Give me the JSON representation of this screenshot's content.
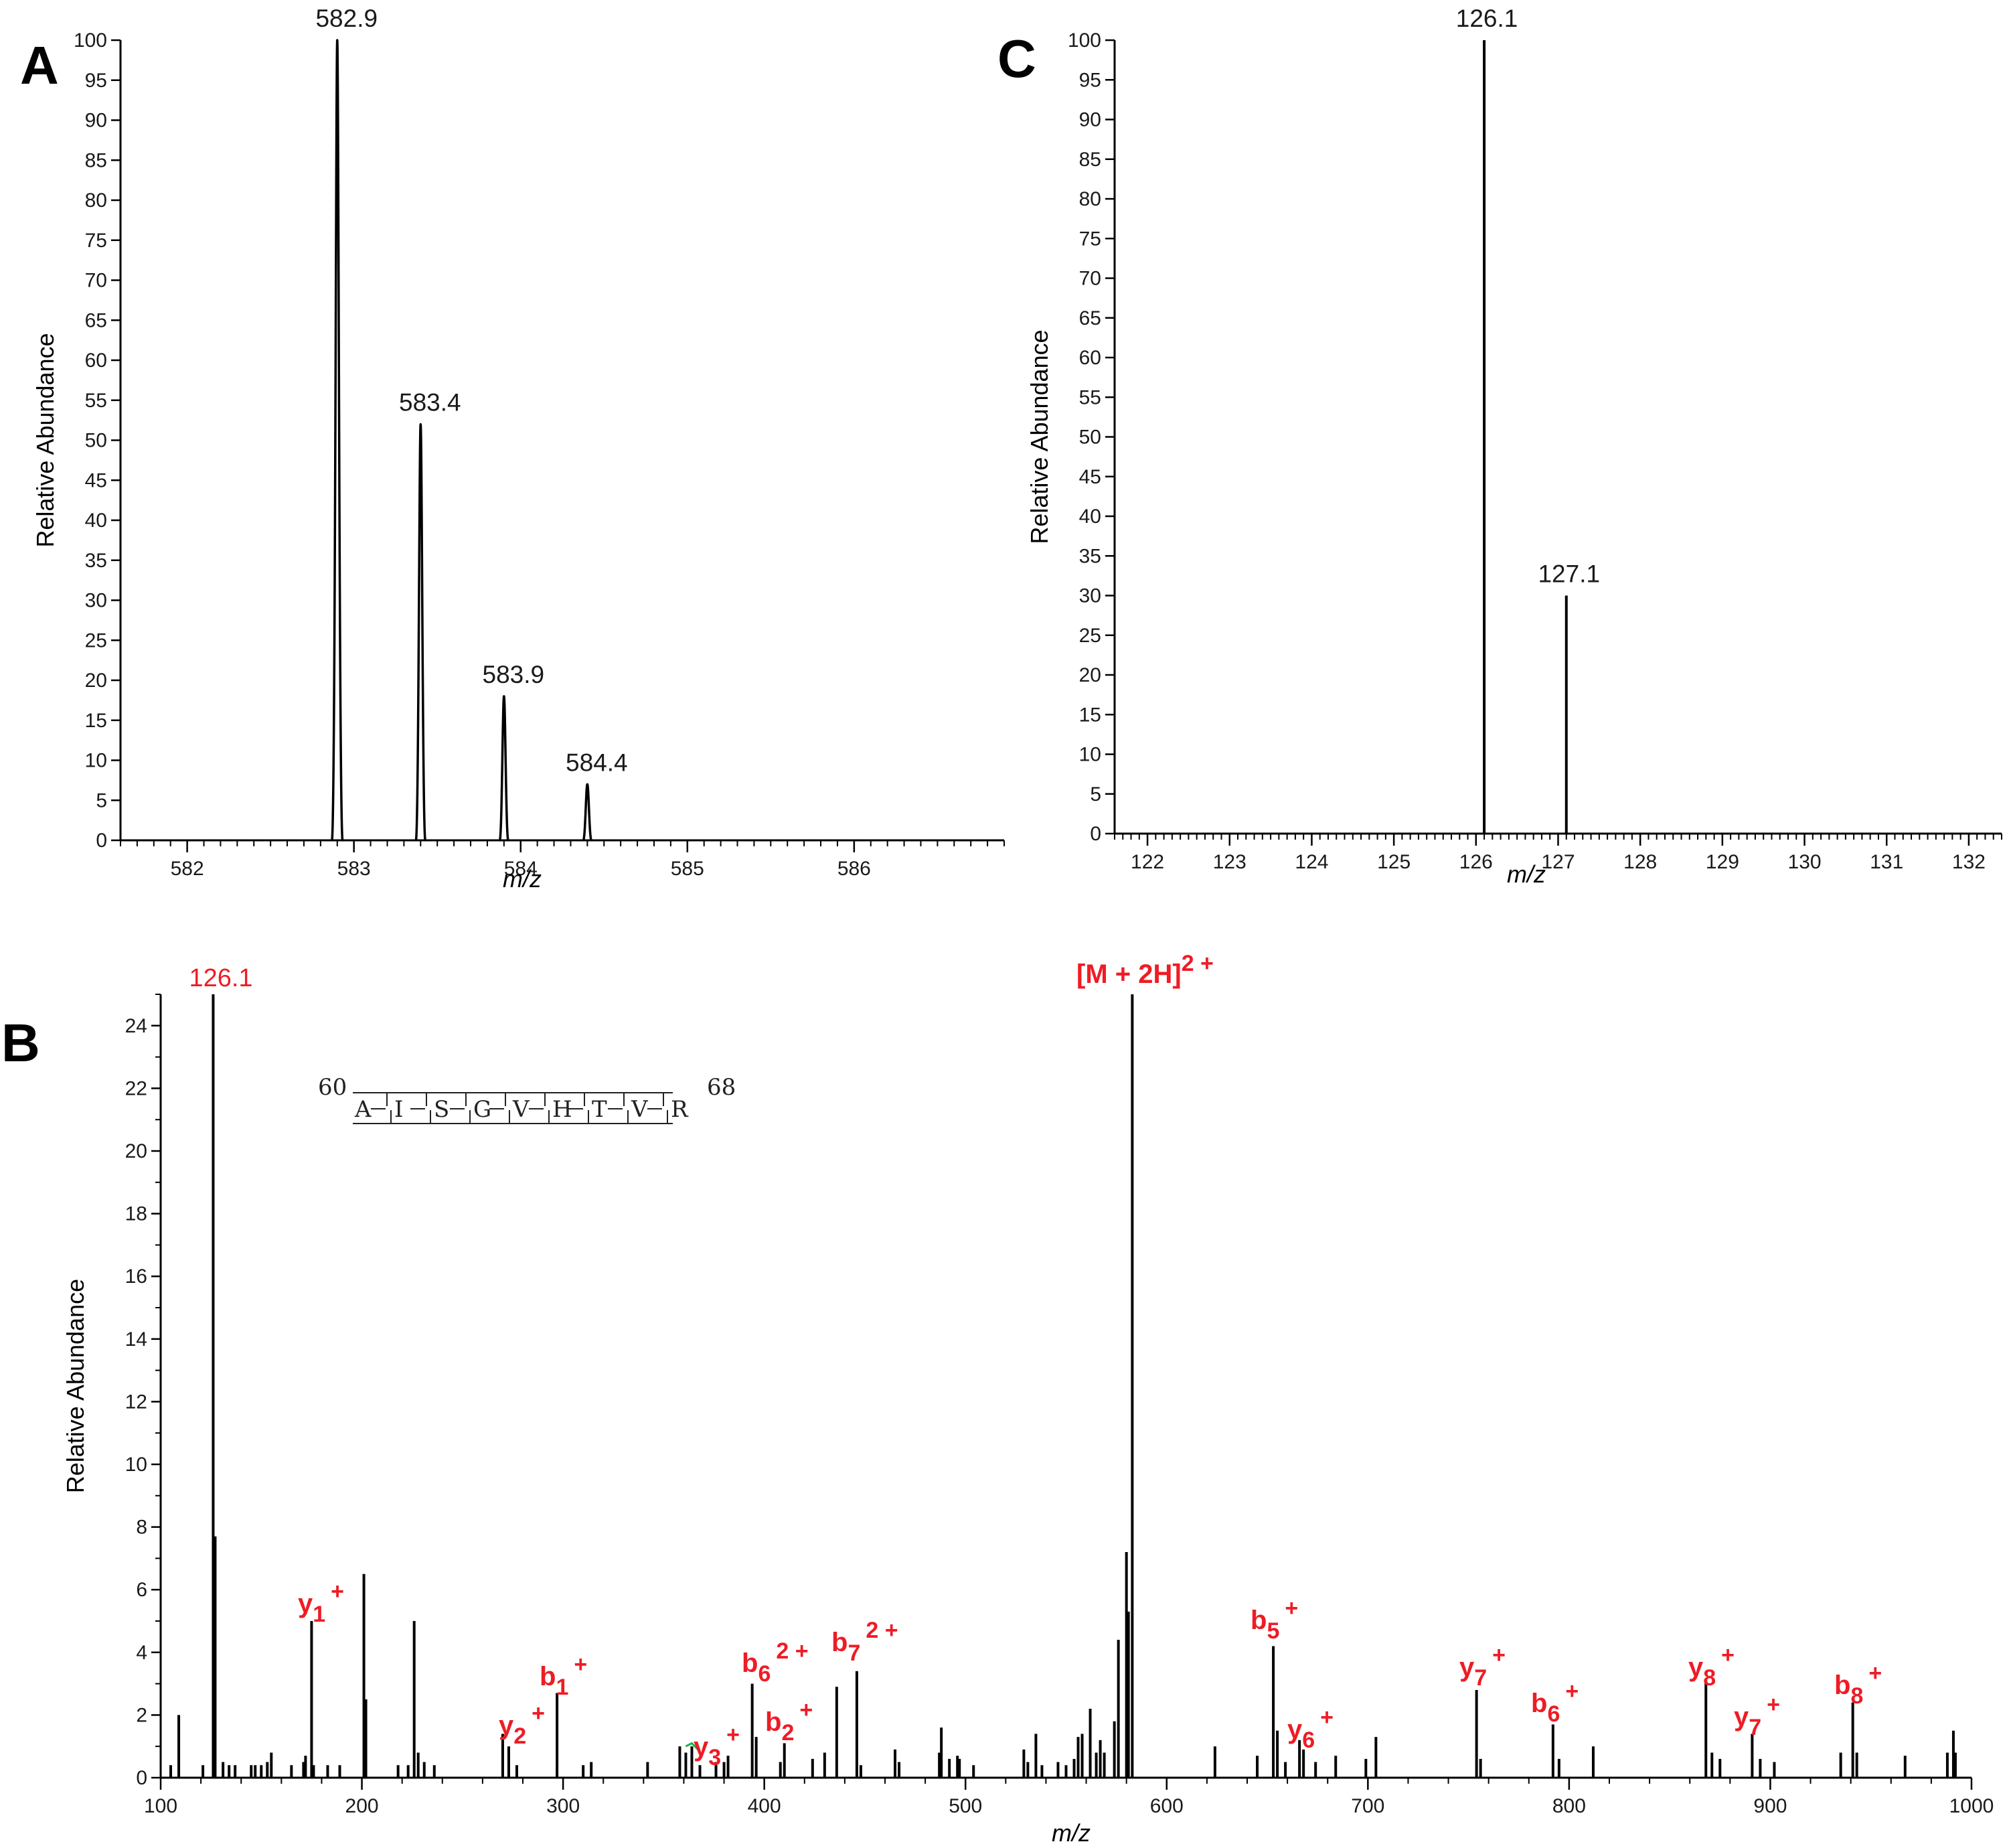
{
  "chart_data": [
    {
      "panel": "A",
      "type": "line",
      "xlabel": "m/z",
      "ylabel": "Relative Abundance",
      "xlim": [
        581.6,
        586.9
      ],
      "ylim": [
        0,
        100
      ],
      "xticks": [
        582,
        583,
        584,
        585,
        586
      ],
      "yticks": [
        0,
        5,
        10,
        15,
        20,
        25,
        30,
        35,
        40,
        45,
        50,
        55,
        60,
        65,
        70,
        75,
        80,
        85,
        90,
        95,
        100
      ],
      "peaks": [
        {
          "x": 582.9,
          "y": 100,
          "label": "582.9"
        },
        {
          "x": 583.4,
          "y": 52,
          "label": "583.4"
        },
        {
          "x": 583.9,
          "y": 18,
          "label": "583.9"
        },
        {
          "x": 584.4,
          "y": 7,
          "label": "584.4"
        }
      ]
    },
    {
      "panel": "C",
      "type": "bar",
      "xlabel": "m/z",
      "ylabel": "Relative Abundance",
      "xlim": [
        121.6,
        132.4
      ],
      "ylim": [
        0,
        100
      ],
      "xticks": [
        122,
        123,
        124,
        125,
        126,
        127,
        128,
        129,
        130,
        131,
        132
      ],
      "yticks": [
        0,
        5,
        10,
        15,
        20,
        25,
        30,
        35,
        40,
        45,
        50,
        55,
        60,
        65,
        70,
        75,
        80,
        85,
        90,
        95,
        100
      ],
      "peaks": [
        {
          "x": 126.1,
          "y": 100,
          "label": "126.1"
        },
        {
          "x": 127.1,
          "y": 30,
          "label": "127.1"
        }
      ]
    },
    {
      "panel": "B",
      "type": "bar",
      "xlabel": "m/z",
      "ylabel": "Relative Abundance",
      "xlim": [
        100,
        1000
      ],
      "ylim": [
        0,
        25
      ],
      "xticks": [
        100,
        200,
        300,
        400,
        500,
        600,
        700,
        800,
        900,
        1000
      ],
      "yticks": [
        0,
        2,
        4,
        6,
        8,
        10,
        12,
        14,
        16,
        18,
        20,
        22,
        24
      ],
      "sequence": {
        "start": "60",
        "end": "68",
        "residues": [
          "A",
          "I",
          "S",
          "G",
          "V",
          "H",
          "T",
          "V",
          "R"
        ]
      },
      "peaks": [
        [
          105,
          0.4
        ],
        [
          109,
          2.0
        ],
        [
          121,
          0.4
        ],
        [
          126.1,
          25
        ],
        [
          127.1,
          7.7
        ],
        [
          131,
          0.5
        ],
        [
          134,
          0.4
        ],
        [
          137,
          0.4
        ],
        [
          145,
          0.4
        ],
        [
          147,
          0.4
        ],
        [
          150,
          0.4
        ],
        [
          153,
          0.5
        ],
        [
          155,
          0.8
        ],
        [
          165,
          0.4
        ],
        [
          171,
          0.5
        ],
        [
          172,
          0.7
        ],
        [
          175,
          5.0
        ],
        [
          176,
          0.4
        ],
        [
          183,
          0.4
        ],
        [
          189,
          0.4
        ],
        [
          201,
          6.5
        ],
        [
          202,
          2.5
        ],
        [
          218,
          0.4
        ],
        [
          223,
          0.4
        ],
        [
          226,
          5.0
        ],
        [
          228,
          0.8
        ],
        [
          231,
          0.5
        ],
        [
          236,
          0.4
        ],
        [
          270,
          1.4
        ],
        [
          273,
          1.0
        ],
        [
          277,
          0.4
        ],
        [
          297,
          2.7
        ],
        [
          310,
          0.4
        ],
        [
          314,
          0.5
        ],
        [
          342,
          0.5
        ],
        [
          358,
          1.0
        ],
        [
          361,
          0.8
        ],
        [
          364,
          1.0
        ],
        [
          368,
          0.4
        ],
        [
          376,
          0.5
        ],
        [
          380,
          0.5
        ],
        [
          382,
          0.7
        ],
        [
          394,
          3.0
        ],
        [
          396,
          1.3
        ],
        [
          408,
          0.5
        ],
        [
          410,
          1.1
        ],
        [
          424,
          0.6
        ],
        [
          430,
          0.8
        ],
        [
          436,
          2.9
        ],
        [
          446,
          3.4
        ],
        [
          448,
          0.4
        ],
        [
          465,
          0.9
        ],
        [
          467,
          0.5
        ],
        [
          487,
          0.8
        ],
        [
          488,
          1.6
        ],
        [
          492,
          0.6
        ],
        [
          496,
          0.7
        ],
        [
          497,
          0.6
        ],
        [
          504,
          0.4
        ],
        [
          529,
          0.9
        ],
        [
          531,
          0.5
        ],
        [
          535,
          1.4
        ],
        [
          538,
          0.4
        ],
        [
          546,
          0.5
        ],
        [
          550,
          0.4
        ],
        [
          554,
          0.6
        ],
        [
          556,
          1.3
        ],
        [
          558,
          1.4
        ],
        [
          562,
          2.2
        ],
        [
          565,
          0.8
        ],
        [
          567,
          1.2
        ],
        [
          569,
          0.8
        ],
        [
          574,
          1.8
        ],
        [
          576,
          4.4
        ],
        [
          580,
          7.2
        ],
        [
          581,
          5.3
        ],
        [
          582.9,
          25
        ],
        [
          624,
          1.0
        ],
        [
          645,
          0.7
        ],
        [
          653,
          4.2
        ],
        [
          655,
          1.5
        ],
        [
          659,
          0.5
        ],
        [
          666,
          1.2
        ],
        [
          668,
          0.9
        ],
        [
          674,
          0.5
        ],
        [
          684,
          0.7
        ],
        [
          699,
          0.6
        ],
        [
          704,
          1.3
        ],
        [
          754,
          2.8
        ],
        [
          756,
          0.6
        ],
        [
          792,
          1.7
        ],
        [
          795,
          0.6
        ],
        [
          812,
          1.0
        ],
        [
          868,
          3.1
        ],
        [
          871,
          0.8
        ],
        [
          875,
          0.6
        ],
        [
          891,
          1.4
        ],
        [
          895,
          0.6
        ],
        [
          902,
          0.5
        ],
        [
          935,
          0.8
        ],
        [
          941,
          2.4
        ],
        [
          943,
          0.8
        ],
        [
          967,
          0.7
        ],
        [
          988,
          0.8
        ],
        [
          991,
          1.5
        ],
        [
          992,
          0.8
        ]
      ],
      "annotations": [
        {
          "id": "p126",
          "text": "126.1",
          "x": 126.1
        },
        {
          "id": "mh",
          "text": "[M + 2H]",
          "sup": "2 +",
          "x": 582.9
        },
        {
          "id": "y1",
          "ion": "y",
          "sub": "1",
          "sup": "+",
          "x": 175
        },
        {
          "id": "b1",
          "ion": "b",
          "sub": "1",
          "sup": "+",
          "x": 297
        },
        {
          "id": "y2",
          "ion": "y",
          "sub": "2",
          "sup": "+",
          "x": 273
        },
        {
          "id": "y3",
          "ion": "y",
          "sub": "3",
          "sup": "+",
          "x": 364
        },
        {
          "id": "b6dd",
          "ion": "b",
          "sub": "6",
          "sup": "2 +",
          "x": 394
        },
        {
          "id": "b2",
          "ion": "b",
          "sub": "2",
          "sup": "+",
          "x": 410
        },
        {
          "id": "b7dd",
          "ion": "b",
          "sub": "7",
          "sup": "2 +",
          "x": 446
        },
        {
          "id": "b5",
          "ion": "b",
          "sub": "5",
          "sup": "+",
          "x": 653
        },
        {
          "id": "y6",
          "ion": "y",
          "sub": "6",
          "sup": "+",
          "x": 668
        },
        {
          "id": "y7a",
          "ion": "y",
          "sub": "7",
          "sup": "+",
          "x": 754
        },
        {
          "id": "b6",
          "ion": "b",
          "sub": "6",
          "sup": "+",
          "x": 792
        },
        {
          "id": "y8",
          "ion": "y",
          "sub": "8",
          "sup": "+",
          "x": 868
        },
        {
          "id": "y7b",
          "ion": "y",
          "sub": "7",
          "sup": "+",
          "x": 891
        },
        {
          "id": "b8",
          "ion": "b",
          "sub": "8",
          "sup": "+",
          "x": 941
        }
      ]
    }
  ],
  "panels": {
    "a": "A",
    "b": "B",
    "c": "C"
  },
  "colors": {
    "annotation": "#ee1c25",
    "line": "#000000"
  }
}
